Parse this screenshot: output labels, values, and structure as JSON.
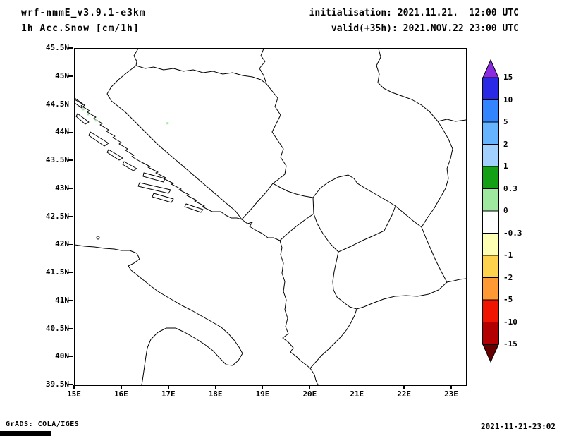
{
  "header": {
    "model": "wrf-nmmE_v3.9.1-e3km",
    "field": "1h Acc.Snow [cm/1h]",
    "init": "initialisation: 2021.11.21.  12:00 UTC",
    "valid": "valid(+35h): 2021.NOV.22 23:00 UTC"
  },
  "footer": {
    "left": "GrADS: COLA/IGES",
    "right": "2021-11-21-23:02"
  },
  "axes": {
    "lat_labels": [
      "45.5N",
      "45N",
      "44.5N",
      "44N",
      "43.5N",
      "43N",
      "42.5N",
      "42N",
      "41.5N",
      "41N",
      "40.5N",
      "40N",
      "39.5N"
    ],
    "lon_labels": [
      "15E",
      "16E",
      "17E",
      "18E",
      "19E",
      "20E",
      "21E",
      "22E",
      "23E"
    ]
  },
  "colorbar": {
    "labels": [
      "15",
      "10",
      "5",
      "2",
      "1",
      "0.3",
      "0",
      "-0.3",
      "-1",
      "-2",
      "-5",
      "-10",
      "-15"
    ],
    "colors": {
      "arrow_top": "#8a2be2",
      "segments": [
        "#2929e6",
        "#3385ff",
        "#66b3ff",
        "#a3d1ff",
        "#14a014",
        "#9fe89f",
        "#ffffff",
        "#ffffb3",
        "#ffd24d",
        "#ff9933",
        "#f01500",
        "#b30000"
      ],
      "arrow_bottom": "#660000"
    }
  },
  "chart_data": {
    "type": "map",
    "title": "1h Acc.Snow [cm/1h]",
    "model": "wrf-nmmE_v3.9.1-e3km",
    "initialisation": "2021.11.21. 12:00 UTC",
    "valid": "valid(+35h): 2021.NOV.22 23:00 UTC",
    "region": "Adriatic / western Balkans",
    "lon_range": [
      15.0,
      23.3
    ],
    "lat_range": [
      39.5,
      45.5
    ],
    "x_ticks": [
      15,
      16,
      17,
      18,
      19,
      20,
      21,
      22,
      23
    ],
    "y_ticks": [
      45.5,
      45,
      44.5,
      44,
      43.5,
      43,
      42.5,
      42,
      41.5,
      41,
      40.5,
      40,
      39.5
    ],
    "colorbar_levels": [
      15,
      10,
      5,
      2,
      1,
      0.3,
      0,
      -0.3,
      -1,
      -2,
      -5,
      -10,
      -15
    ],
    "units": "cm/1h",
    "snow_specks": [
      {
        "lon": 15.18,
        "lat": 44.42,
        "value": "0 to 0.3"
      },
      {
        "lon": 15.28,
        "lat": 44.33,
        "value": "0 to 0.3"
      },
      {
        "lon": 15.45,
        "lat": 44.22,
        "value": "0 to 0.3"
      },
      {
        "lon": 16.97,
        "lat": 44.17,
        "value": "0 to 0.3"
      }
    ],
    "note": "Accumulated snow is ~0 over nearly the whole domain (white); only a few tiny light-green 0-0.3 cm specks along the Velebit/Dinaric coastal mountains."
  }
}
